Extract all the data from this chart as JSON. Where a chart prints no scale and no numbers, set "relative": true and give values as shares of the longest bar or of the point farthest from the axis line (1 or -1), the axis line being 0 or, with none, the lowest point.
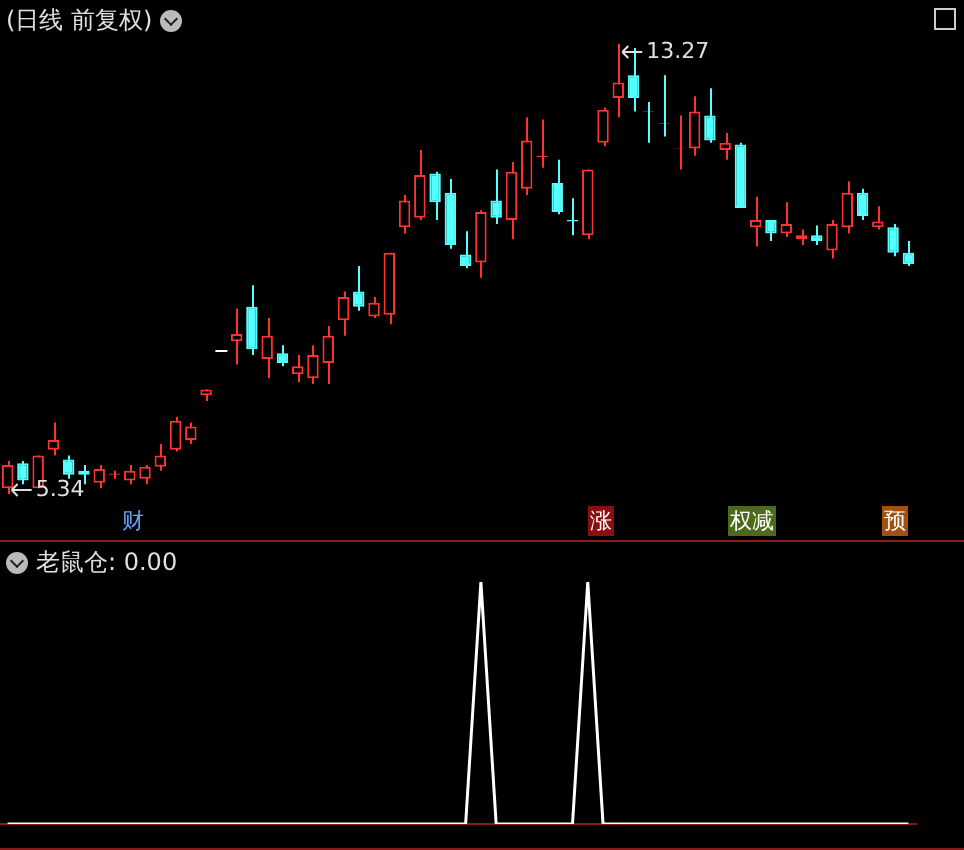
{
  "chart_data": [
    {
      "type": "candlestick",
      "title": "(日线 前复权)",
      "categories": [
        null,
        null,
        null,
        null,
        null,
        null,
        null,
        null,
        null,
        null,
        null,
        null,
        null,
        null,
        null,
        null,
        null,
        null,
        null,
        null,
        null,
        null,
        null,
        null,
        null,
        null,
        null,
        null,
        null,
        null,
        null,
        null,
        null,
        null,
        null,
        null,
        null,
        null,
        null,
        null,
        null,
        null,
        null,
        null,
        null,
        null,
        null,
        null,
        null,
        null,
        null,
        null,
        null,
        null,
        null,
        null,
        null,
        null,
        null,
        null
      ],
      "ohlc": [
        [
          5.44,
          5.92,
          5.34,
          5.85
        ],
        [
          5.88,
          5.92,
          5.51,
          5.58
        ],
        [
          5.44,
          6.02,
          5.44,
          6.02
        ],
        [
          6.12,
          6.6,
          6.02,
          6.29
        ],
        [
          5.95,
          6.02,
          5.61,
          5.68
        ],
        [
          5.75,
          5.85,
          5.51,
          5.68
        ],
        [
          5.54,
          5.85,
          5.44,
          5.78
        ],
        [
          5.68,
          5.75,
          5.61,
          5.7
        ],
        [
          5.58,
          5.85,
          5.51,
          5.75
        ],
        [
          5.61,
          5.85,
          5.51,
          5.82
        ],
        [
          5.82,
          6.22,
          5.75,
          6.02
        ],
        [
          6.12,
          6.7,
          6.09,
          6.63
        ],
        [
          6.29,
          6.6,
          6.22,
          6.53
        ],
        [
          7.08,
          7.18,
          6.98,
          7.18
        ],
        [
          7.89,
          7.89,
          7.89,
          7.89
        ],
        [
          8.03,
          8.61,
          7.62,
          8.16
        ],
        [
          8.64,
          9.02,
          7.79,
          7.89
        ],
        [
          7.72,
          8.44,
          7.38,
          8.13
        ],
        [
          7.82,
          7.96,
          7.59,
          7.65
        ],
        [
          7.45,
          7.79,
          7.31,
          7.59
        ],
        [
          7.38,
          7.96,
          7.28,
          7.79
        ],
        [
          7.65,
          8.3,
          7.28,
          8.13
        ],
        [
          8.4,
          8.91,
          8.13,
          8.81
        ],
        [
          8.91,
          9.36,
          8.57,
          8.64
        ],
        [
          8.47,
          8.81,
          8.44,
          8.71
        ],
        [
          8.5,
          9.59,
          8.33,
          9.59
        ],
        [
          10.04,
          10.61,
          9.93,
          10.51
        ],
        [
          10.21,
          11.4,
          10.17,
          10.96
        ],
        [
          10.99,
          11.02,
          10.17,
          10.48
        ],
        [
          10.65,
          10.89,
          9.66,
          9.73
        ],
        [
          9.56,
          9.97,
          9.32,
          9.36
        ],
        [
          9.42,
          10.34,
          9.15,
          10.31
        ],
        [
          10.51,
          11.06,
          10.1,
          10.21
        ],
        [
          10.17,
          11.19,
          9.83,
          11.02
        ],
        [
          10.72,
          11.98,
          10.61,
          11.57
        ],
        [
          11.28,
          11.94,
          11.09,
          11.3
        ],
        [
          10.82,
          11.23,
          10.27,
          10.31
        ],
        [
          10.17,
          10.55,
          9.9,
          10.14
        ],
        [
          9.9,
          11.06,
          9.83,
          11.06
        ],
        [
          11.53,
          12.15,
          11.47,
          12.11
        ],
        [
          12.32,
          13.27,
          11.98,
          12.59
        ],
        [
          12.72,
          13.2,
          12.08,
          12.32
        ],
        [
          12.09,
          12.25,
          11.53,
          12.08
        ],
        [
          11.88,
          12.72,
          11.64,
          11.87
        ],
        [
          11.42,
          12.01,
          11.06,
          11.43
        ],
        [
          11.43,
          12.35,
          11.3,
          12.08
        ],
        [
          12.01,
          12.49,
          11.53,
          11.57
        ],
        [
          11.4,
          11.7,
          11.23,
          11.53
        ],
        [
          11.5,
          11.53,
          10.38,
          10.38
        ],
        [
          10.04,
          10.58,
          9.7,
          10.17
        ],
        [
          10.17,
          10.17,
          9.8,
          9.93
        ],
        [
          9.93,
          10.48,
          9.87,
          10.1
        ],
        [
          9.83,
          10.0,
          9.73,
          9.9
        ],
        [
          9.9,
          10.07,
          9.73,
          9.8
        ],
        [
          9.63,
          10.17,
          9.49,
          10.1
        ],
        [
          10.04,
          10.85,
          9.93,
          10.65
        ],
        [
          10.65,
          10.72,
          10.17,
          10.24
        ],
        [
          10.04,
          10.41,
          10.0,
          10.14
        ],
        [
          10.04,
          10.1,
          9.53,
          9.59
        ],
        [
          9.59,
          9.8,
          9.36,
          9.39
        ]
      ],
      "colors": [
        "#ff3232",
        "#54ffff",
        "#ff3232",
        "#ff3232",
        "#54ffff",
        "#54ffff",
        "#ff3232",
        "#ff3232",
        "#ff3232",
        "#ff3232",
        "#ff3232",
        "#ff3232",
        "#ff3232",
        "#ff3232",
        "#ffffff",
        "#ff3232",
        "#54ffff",
        "#ff3232",
        "#54ffff",
        "#ff3232",
        "#ff3232",
        "#ff3232",
        "#ff3232",
        "#54ffff",
        "#ff3232",
        "#ff3232",
        "#ff3232",
        "#ff3232",
        "#54ffff",
        "#54ffff",
        "#54ffff",
        "#ff3232",
        "#54ffff",
        "#ff3232",
        "#ff3232",
        "#ff3232",
        "#54ffff",
        "#54ffff",
        "#ff3232",
        "#ff3232",
        "#ff3232",
        "#54ffff",
        "#54ffff",
        "#54ffff",
        "#ff3232",
        "#ff3232",
        "#54ffff",
        "#ff3232",
        "#54ffff",
        "#ff3232",
        "#54ffff",
        "#ff3232",
        "#ff3232",
        "#54ffff",
        "#ff3232",
        "#ff3232",
        "#54ffff",
        "#ff3232",
        "#54ffff",
        "#54ffff"
      ],
      "annotations": [
        "13.27",
        "5.34",
        "财",
        "涨",
        "权减",
        "预"
      ]
    },
    {
      "type": "line",
      "title": "老鼠仓: 0.00",
      "relative": true,
      "categories": [
        null,
        null,
        null,
        null,
        null,
        null,
        null,
        null,
        null,
        null,
        null,
        null,
        null,
        null,
        null,
        null,
        null,
        null,
        null,
        null,
        null,
        null,
        null,
        null,
        null,
        null,
        null,
        null,
        null,
        null,
        null,
        null,
        null,
        null,
        null,
        null,
        null,
        null,
        null,
        null,
        null,
        null,
        null,
        null,
        null,
        null,
        null,
        null,
        null,
        null,
        null,
        null,
        null,
        null,
        null,
        null,
        null,
        null,
        null,
        null
      ],
      "series": [
        {
          "color": "#ffffff",
          "values": [
            0,
            0,
            0,
            0,
            0,
            0,
            0,
            0,
            0,
            0,
            0,
            0,
            0,
            0,
            0,
            0,
            0,
            0,
            0,
            0,
            0,
            0,
            0,
            0,
            0,
            0,
            0,
            0,
            0,
            0,
            0,
            1,
            0,
            0,
            0,
            0,
            0,
            0,
            1,
            0,
            0,
            0,
            0,
            0,
            0,
            0,
            0,
            0,
            0,
            0,
            0,
            0,
            0,
            0,
            0,
            0,
            0,
            0,
            0,
            0
          ]
        }
      ]
    }
  ]
}
